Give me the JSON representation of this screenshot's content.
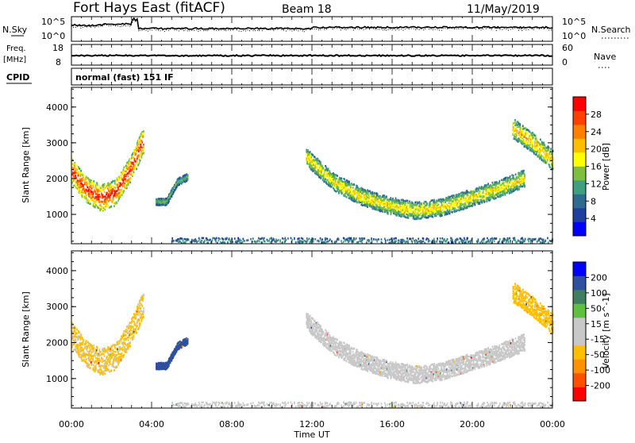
{
  "header": {
    "radar": "Fort Hays East (fitACF)",
    "beam": "Beam 18",
    "date": "11/May/2019"
  },
  "strip1": {
    "left_label": "N.Sky",
    "right_label": "N.Search",
    "y_ticks": [
      "10^5",
      "10^0"
    ]
  },
  "strip2": {
    "left_label_line1": "Freq.",
    "left_label_line2": "[MHz]",
    "right_label": "Nave",
    "left_ticks": [
      "18",
      "8"
    ],
    "right_ticks": [
      "60",
      "0"
    ]
  },
  "cpid": {
    "label": "CPID",
    "value": "normal (fast) 151 IF"
  },
  "colors": {
    "power": [
      "#0000ff",
      "#1f3f9e",
      "#2f6b8f",
      "#3f9f7f",
      "#7fbf3f",
      "#ffff00",
      "#ffbf00",
      "#ff8000",
      "#ff4000",
      "#ff0000"
    ],
    "velocity": [
      "#ff0000",
      "#ff5000",
      "#ff9000",
      "#ffbf00",
      "#c8c8c8",
      "#c8c8c8",
      "#5fbf3f",
      "#3f7f5f",
      "#2f4f9f",
      "#0000ff"
    ]
  },
  "chart_data": [
    {
      "type": "heatmap",
      "quantity": "power",
      "ylabel": "Slant Range [km]",
      "xlabel": "Time UT",
      "x_ticks": [
        "00:00",
        "04:00",
        "08:00",
        "12:00",
        "16:00",
        "20:00",
        "00:00"
      ],
      "x_range_hours": [
        0,
        24
      ],
      "ylim": [
        180,
        4550
      ],
      "y_ticks": [
        1000,
        2000,
        3000,
        4000
      ],
      "colorbar": {
        "label": "Power [dB]",
        "range": [
          0,
          32
        ],
        "ticks": [
          "4",
          "8",
          "12",
          "16",
          "20",
          "24",
          "28"
        ]
      },
      "echo_regions": [
        {
          "name": "morning-arc",
          "t0": 0.0,
          "t1": 3.6,
          "r_center": [
            2200,
            1700,
            1450,
            1600,
            2200,
            3100
          ],
          "width_km": 450,
          "peak_db": 30
        },
        {
          "name": "patch-4h",
          "t0": 4.2,
          "t1": 5.8,
          "r_center": [
            1350,
            1350,
            1900,
            2050
          ],
          "width_km": 120,
          "peak_db": 14
        },
        {
          "name": "evening-arc",
          "t0": 11.7,
          "t1": 22.6,
          "r_center": [
            2600,
            1900,
            1500,
            1250,
            1100,
            1200,
            1450,
            1700,
            2000
          ],
          "width_km": 300,
          "peak_db": 20
        },
        {
          "name": "late-arc",
          "t0": 22.0,
          "t1": 24.0,
          "r_center": [
            3400,
            3000,
            2500
          ],
          "width_km": 350,
          "peak_db": 22
        },
        {
          "name": "ground-noise",
          "t0": 5.0,
          "t1": 24.0,
          "r_center": [
            250,
            250
          ],
          "width_km": 150,
          "peak_db": 10
        }
      ]
    },
    {
      "type": "heatmap",
      "quantity": "velocity",
      "ylabel": "Slant Range [km]",
      "xlabel": "Time UT",
      "x_ticks": [
        "00:00",
        "04:00",
        "08:00",
        "12:00",
        "16:00",
        "20:00",
        "00:00"
      ],
      "x_range_hours": [
        0,
        24
      ],
      "ylim": [
        180,
        4550
      ],
      "y_ticks": [
        1000,
        2000,
        3000,
        4000
      ],
      "colorbar": {
        "label": "Velocity [m s^-1]",
        "levels": [
          -250,
          -200,
          -100,
          -50,
          -15,
          15,
          50,
          100,
          200,
          250
        ],
        "ticks": [
          "200",
          "100",
          "50",
          "15",
          "-15",
          "-50",
          "-100",
          "-200"
        ]
      },
      "echo_regions": [
        {
          "name": "morning-arc",
          "t0": 0.0,
          "t1": 3.6,
          "velocity_ms": -20
        },
        {
          "name": "patch-4h",
          "t0": 4.2,
          "t1": 5.8,
          "velocity_ms": 220
        },
        {
          "name": "evening-arc",
          "t0": 11.7,
          "t1": 22.6,
          "velocity_ms": 0
        },
        {
          "name": "late-arc",
          "t0": 22.0,
          "t1": 24.0,
          "velocity_ms": -40
        },
        {
          "name": "ground-noise",
          "t0": 5.0,
          "t1": 24.0,
          "velocity_ms": 30
        }
      ]
    }
  ]
}
